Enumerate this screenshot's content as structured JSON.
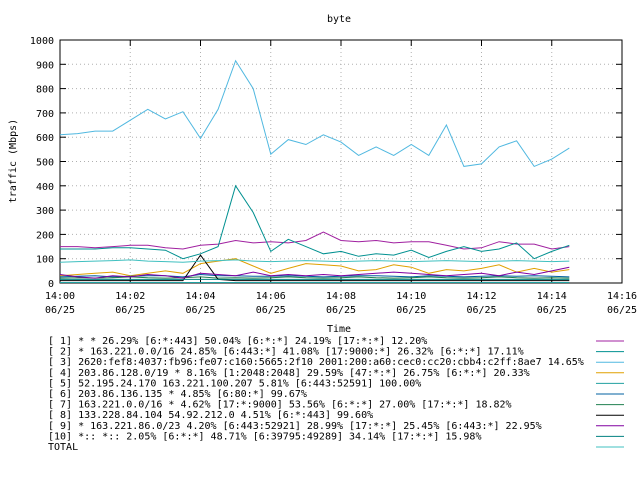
{
  "chart_data": {
    "type": "line",
    "title": "byte",
    "xlabel": "Time",
    "ylabel": "traffic (Mbps)",
    "ylim": [
      0,
      1000
    ],
    "yticks": [
      0,
      100,
      200,
      300,
      400,
      500,
      600,
      700,
      800,
      900,
      1000
    ],
    "ytick_labels": [
      "0",
      "100",
      "200",
      "300",
      "400",
      "500",
      "600",
      "700",
      "800",
      "900",
      "1000"
    ],
    "xlim": [
      0,
      16
    ],
    "xticks": [
      0,
      2,
      4,
      6,
      8,
      10,
      12,
      14,
      16
    ],
    "xtick_labels_time": [
      "14:00",
      "14:02",
      "14:04",
      "14:06",
      "14:08",
      "14:10",
      "14:12",
      "14:14",
      "14:16"
    ],
    "xtick_labels_date": [
      "06/25",
      "06/25",
      "06/25",
      "06/25",
      "06/25",
      "06/25",
      "06/25",
      "06/25",
      "06/25"
    ],
    "x": [
      0,
      0.5,
      1,
      1.5,
      2,
      2.5,
      3,
      3.5,
      4,
      4.5,
      5,
      5.5,
      6,
      6.5,
      7,
      7.5,
      8,
      8.5,
      9,
      9.5,
      10,
      10.5,
      11,
      11.5,
      12,
      12.5,
      13,
      13.5,
      14,
      14.5
    ],
    "legend_position": "bottom",
    "series": [
      {
        "name": "[ 1] * * 26.29%  [6:*:443] 50.04% [6:*:*] 24.19% [17:*:*] 12.20%",
        "color": "#a020a0",
        "values": [
          150,
          150,
          145,
          150,
          155,
          155,
          145,
          140,
          155,
          160,
          175,
          165,
          170,
          165,
          175,
          210,
          175,
          170,
          175,
          165,
          170,
          170,
          155,
          140,
          145,
          170,
          160,
          160,
          140,
          150
        ]
      },
      {
        "name": "[ 2] * 163.221.0.0/16 24.85%  [6:443:*] 41.08% [17:9000:*] 26.32% [6:*:*] 17.11%",
        "color": "#009090",
        "values": [
          140,
          140,
          140,
          145,
          145,
          140,
          135,
          100,
          120,
          150,
          400,
          290,
          130,
          180,
          150,
          120,
          130,
          110,
          120,
          115,
          135,
          105,
          130,
          150,
          130,
          140,
          165,
          100,
          130,
          155
        ]
      },
      {
        "name": "[ 3] 2620:fef8:4037:fb96:fe07:c160:5665:2f10 2001:200:a60:cec0:cc20:cbb4:c2ff:8ae7 14.65%",
        "color": "#50b8e0",
        "values": [
          610,
          615,
          625,
          625,
          670,
          715,
          675,
          705,
          595,
          715,
          915,
          800,
          530,
          590,
          570,
          610,
          580,
          525,
          560,
          525,
          570,
          525,
          650,
          480,
          490,
          560,
          585,
          480,
          510,
          555
        ]
      },
      {
        "name": "[ 4] 203.86.128.0/19 * 8.16%  [1:2048:2048] 29.59% [47:*:*] 26.75% [6:*:*] 20.33%",
        "color": "#e0a000",
        "values": [
          30,
          35,
          40,
          45,
          30,
          40,
          50,
          40,
          80,
          90,
          100,
          70,
          40,
          60,
          80,
          75,
          70,
          50,
          55,
          75,
          65,
          40,
          55,
          50,
          60,
          75,
          45,
          60,
          45,
          55
        ]
      },
      {
        "name": "[ 5] 52.195.24.170 163.221.100.207 5.81%  [6:443:52591] 100.00%",
        "color": "#20a0a0",
        "values": [
          2,
          2,
          2,
          2,
          2,
          2,
          2,
          2,
          2,
          2,
          2,
          2,
          2,
          2,
          2,
          2,
          2,
          2,
          2,
          2,
          2,
          2,
          2,
          2,
          2,
          2,
          2,
          2,
          2,
          2
        ]
      },
      {
        "name": "[ 6] 203.86.136.135 * 4.85%  [6:80:*] 99.67%",
        "color": "#0060a0",
        "values": [
          25,
          28,
          30,
          25,
          28,
          30,
          30,
          25,
          35,
          30,
          30,
          28,
          28,
          30,
          28,
          25,
          28,
          30,
          30,
          28,
          25,
          30,
          28,
          25,
          28,
          30,
          28,
          30,
          28,
          25
        ]
      },
      {
        "name": "[ 7] 163.221.0.0/16 * 4.62%  [17:*:9000] 53.56% [6:*:*] 27.00% [17:*:*] 18.82%",
        "color": "#208050",
        "values": [
          20,
          22,
          20,
          22,
          25,
          22,
          20,
          22,
          25,
          20,
          22,
          20,
          22,
          25,
          22,
          20,
          22,
          25,
          22,
          20,
          22,
          25,
          22,
          20,
          22,
          25,
          22,
          20,
          22,
          20
        ]
      },
      {
        "name": "[ 8] 133.228.84.104 54.92.212.0 4.51%  [6:*:443] 99.60%",
        "color": "#000000",
        "values": [
          10,
          10,
          10,
          10,
          10,
          10,
          10,
          10,
          115,
          15,
          10,
          10,
          10,
          10,
          10,
          10,
          10,
          10,
          10,
          10,
          10,
          10,
          10,
          10,
          10,
          10,
          10,
          10,
          10,
          10
        ]
      },
      {
        "name": "[ 9] * 163.221.86.0/23 4.20%  [6:443:52921] 28.99% [17:*:*] 25.45% [6:443:*] 22.95%",
        "color": "#8000a0",
        "values": [
          35,
          25,
          20,
          30,
          25,
          35,
          30,
          20,
          40,
          35,
          30,
          45,
          30,
          35,
          30,
          35,
          30,
          35,
          40,
          45,
          40,
          35,
          30,
          35,
          40,
          30,
          45,
          35,
          50,
          65
        ]
      },
      {
        "name": "[10] *:: *:: 2.05%  [6:*:*] 48.71% [6:39795:49289] 34.14% [17:*:*] 15.98%",
        "color": "#008080",
        "values": [
          15,
          15,
          15,
          15,
          15,
          15,
          15,
          15,
          15,
          15,
          15,
          15,
          15,
          15,
          15,
          15,
          15,
          15,
          15,
          15,
          15,
          15,
          15,
          15,
          15,
          15,
          15,
          15,
          15,
          15
        ]
      },
      {
        "name": "TOTAL",
        "color": "#40c0c0",
        "values": [
          85,
          88,
          90,
          92,
          95,
          90,
          88,
          85,
          90,
          92,
          95,
          90,
          88,
          90,
          92,
          90,
          88,
          90,
          92,
          90,
          88,
          90,
          92,
          90,
          88,
          90,
          92,
          90,
          88,
          90
        ]
      }
    ]
  }
}
